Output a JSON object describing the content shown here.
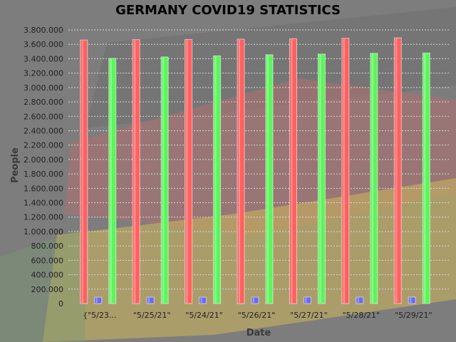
{
  "chart_data": {
    "type": "bar",
    "title": "GERMANY COVID19 STATISTICS",
    "xlabel": "Date",
    "ylabel": "People",
    "ylim": [
      0,
      3800000
    ],
    "ytick_step": 200000,
    "grid": true,
    "categories": [
      "{\"5/23...",
      "\"5/25/21\"",
      "\"5/24/21\"",
      "\"5/26/21\"",
      "\"5/27/21\"",
      "\"5/28/21\"",
      "\"5/29/21\""
    ],
    "series": [
      {
        "color": "#ff6060",
        "values": [
          3660000,
          3665000,
          3667000,
          3672000,
          3678000,
          3684000,
          3690000
        ]
      },
      {
        "color": "#6a6af0",
        "values": [
          88000,
          88000,
          88000,
          88000,
          89000,
          89000,
          89000
        ]
      },
      {
        "color": "#5cf55c",
        "values": [
          3405000,
          3425000,
          3440000,
          3455000,
          3465000,
          3475000,
          3480000
        ]
      }
    ]
  }
}
